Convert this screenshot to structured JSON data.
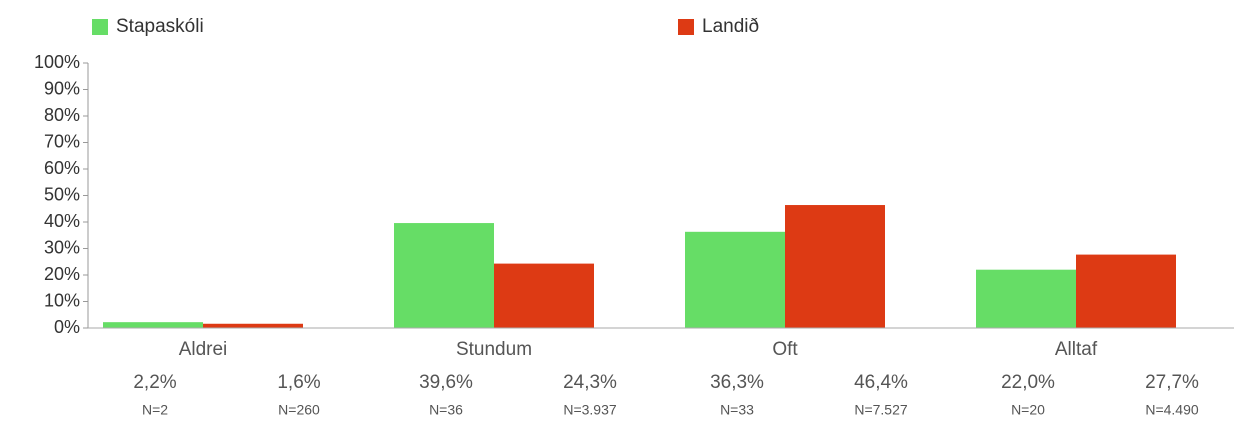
{
  "chart_data": {
    "type": "bar",
    "categories": [
      "Aldrei",
      "Stundum",
      "Oft",
      "Alltaf"
    ],
    "series": [
      {
        "name": "Stapaskóli",
        "color": "#66dd66",
        "values": [
          2.2,
          39.6,
          36.3,
          22.0
        ],
        "value_labels": [
          "2,2%",
          "39,6%",
          "36,3%",
          "22,0%"
        ],
        "n_labels": [
          "N=2",
          "N=36",
          "N=33",
          "N=20"
        ]
      },
      {
        "name": "Landið",
        "color": "#dd3a14",
        "values": [
          1.6,
          24.3,
          46.4,
          27.7
        ],
        "value_labels": [
          "1,6%",
          "24,3%",
          "46,4%",
          "27,7%"
        ],
        "n_labels": [
          "N=260",
          "N=3.937",
          "N=7.527",
          "N=4.490"
        ]
      }
    ],
    "ylim": [
      0,
      100
    ],
    "yticks": [
      {
        "value": 0,
        "label": "0%"
      },
      {
        "value": 10,
        "label": "10%"
      },
      {
        "value": 20,
        "label": "20%"
      },
      {
        "value": 30,
        "label": "30%"
      },
      {
        "value": 40,
        "label": "40%"
      },
      {
        "value": 50,
        "label": "50%"
      },
      {
        "value": 60,
        "label": "60%"
      },
      {
        "value": 70,
        "label": "70%"
      },
      {
        "value": 80,
        "label": "80%"
      },
      {
        "value": 90,
        "label": "90%"
      },
      {
        "value": 100,
        "label": "100%"
      }
    ]
  }
}
